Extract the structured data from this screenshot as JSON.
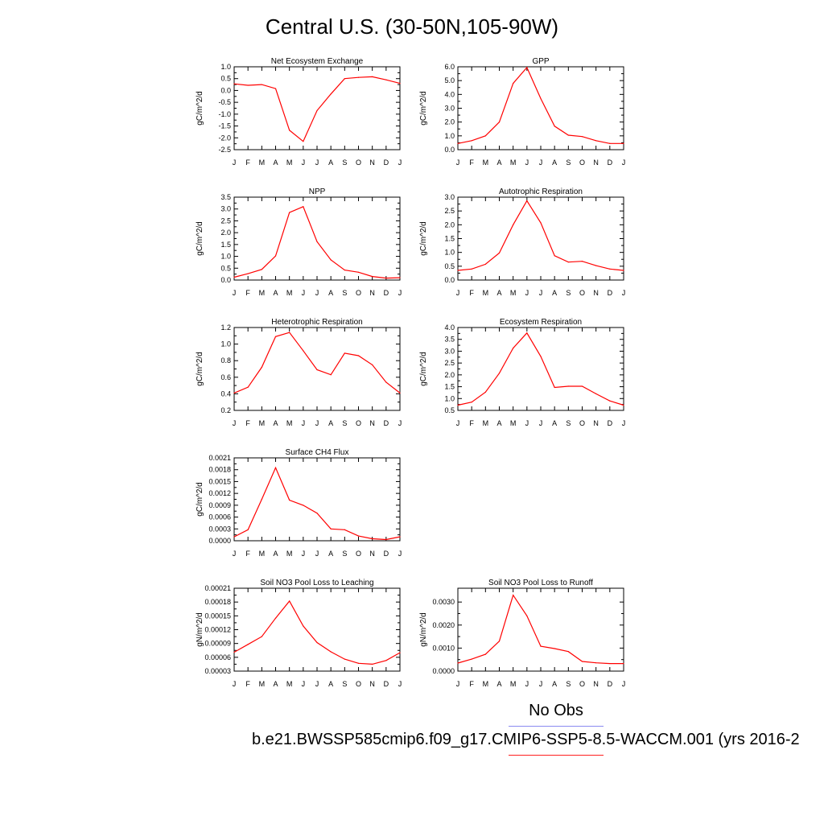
{
  "page": {
    "title": "Central U.S. (30-50N,105-90W)"
  },
  "legend": {
    "obs_label": "No Obs",
    "obs_color": "#8a8af0",
    "model_label": "b.e21.BWSSP585cmip6.f09_g17.CMIP6-SSP5-8.5-WACCM.001 (yrs 2016-2",
    "model_color": "#ff2020"
  },
  "months": [
    "J",
    "F",
    "M",
    "A",
    "M",
    "J",
    "J",
    "A",
    "S",
    "O",
    "N",
    "D",
    "J"
  ],
  "chart_data": [
    {
      "type": "line",
      "title": "Net Ecosystem Exchange",
      "ylabel": "gC/m^2/d",
      "ylim": [
        -2.5,
        1.0
      ],
      "yticks": [
        "1.0",
        "0.5",
        "0.0",
        "-0.5",
        "-1.0",
        "-1.5",
        "-2.0",
        "-2.5"
      ],
      "ytick_values": [
        1.0,
        0.5,
        0.0,
        -0.5,
        -1.0,
        -1.5,
        -2.0,
        -2.5
      ],
      "series": [
        {
          "values": [
            0.28,
            0.22,
            0.25,
            0.08,
            -1.68,
            -2.15,
            -0.85,
            -0.15,
            0.5,
            0.55,
            0.58,
            0.45,
            0.3
          ],
          "color": "#ff0000"
        }
      ]
    },
    {
      "type": "line",
      "title": "GPP",
      "ylabel": "gC/m^2/d",
      "ylim": [
        0.0,
        6.0
      ],
      "yticks": [
        "6.0",
        "5.0",
        "4.0",
        "3.0",
        "2.0",
        "1.0",
        "0.0"
      ],
      "ytick_values": [
        6,
        5,
        4,
        3,
        2,
        1,
        0
      ],
      "series": [
        {
          "values": [
            0.45,
            0.65,
            1.0,
            2.0,
            4.8,
            5.95,
            3.7,
            1.7,
            1.05,
            0.95,
            0.65,
            0.45,
            0.45
          ],
          "color": "#ff0000"
        }
      ]
    },
    {
      "type": "line",
      "title": "NPP",
      "ylabel": "gC/m^2/d",
      "ylim": [
        0.0,
        3.5
      ],
      "yticks": [
        "3.5",
        "3.0",
        "2.5",
        "2.0",
        "1.5",
        "1.0",
        "0.5",
        "0.0"
      ],
      "ytick_values": [
        3.5,
        3.0,
        2.5,
        2.0,
        1.5,
        1.0,
        0.5,
        0.0
      ],
      "series": [
        {
          "values": [
            0.12,
            0.27,
            0.45,
            1.02,
            2.85,
            3.1,
            1.62,
            0.85,
            0.42,
            0.33,
            0.15,
            0.08,
            0.1
          ],
          "color": "#ff0000"
        }
      ]
    },
    {
      "type": "line",
      "title": "Autotrophic Respiration",
      "ylabel": "gC/m^2/d",
      "ylim": [
        0.0,
        3.0
      ],
      "yticks": [
        "3.0",
        "2.5",
        "2.0",
        "1.5",
        "1.0",
        "0.5",
        "0.0"
      ],
      "ytick_values": [
        3.0,
        2.5,
        2.0,
        1.5,
        1.0,
        0.5,
        0.0
      ],
      "series": [
        {
          "values": [
            0.35,
            0.4,
            0.57,
            0.98,
            2.0,
            2.87,
            2.07,
            0.88,
            0.65,
            0.68,
            0.52,
            0.4,
            0.35
          ],
          "color": "#ff0000"
        }
      ]
    },
    {
      "type": "line",
      "title": "Heterotrophic Respiration",
      "ylabel": "gC/m^2/d",
      "ylim": [
        0.2,
        1.2
      ],
      "yticks": [
        "1.2",
        "1.0",
        "0.8",
        "0.6",
        "0.4",
        "0.2"
      ],
      "ytick_values": [
        1.2,
        1.0,
        0.8,
        0.6,
        0.4,
        0.2
      ],
      "series": [
        {
          "values": [
            0.41,
            0.48,
            0.72,
            1.09,
            1.14,
            0.92,
            0.69,
            0.63,
            0.89,
            0.86,
            0.75,
            0.54,
            0.41
          ],
          "color": "#ff0000"
        }
      ]
    },
    {
      "type": "line",
      "title": "Ecosystem Respiration",
      "ylabel": "gC/m^2/d",
      "ylim": [
        0.5,
        4.0
      ],
      "yticks": [
        "4.0",
        "3.5",
        "3.0",
        "2.5",
        "2.0",
        "1.5",
        "1.0",
        "0.5"
      ],
      "ytick_values": [
        4.0,
        3.5,
        3.0,
        2.5,
        2.0,
        1.5,
        1.0,
        0.5
      ],
      "series": [
        {
          "values": [
            0.72,
            0.85,
            1.27,
            2.07,
            3.13,
            3.77,
            2.78,
            1.47,
            1.52,
            1.52,
            1.2,
            0.9,
            0.72
          ],
          "color": "#ff0000"
        }
      ]
    },
    {
      "type": "line",
      "title": "Surface CH4 Flux",
      "ylabel": "gC/m^2/d",
      "ylim": [
        0.0,
        0.0021
      ],
      "yticks": [
        "0.0021",
        "0.0018",
        "0.0015",
        "0.0012",
        "0.0009",
        "0.0006",
        "0.0003",
        "0.0000"
      ],
      "ytick_values": [
        0.0021,
        0.0018,
        0.0015,
        0.0012,
        0.0009,
        0.0006,
        0.0003,
        0.0
      ],
      "series": [
        {
          "values": [
            0.0001,
            0.00028,
            0.00105,
            0.00185,
            0.00103,
            0.0009,
            0.0007,
            0.0003,
            0.00028,
            0.00012,
            5e-05,
            3e-05,
            0.0001
          ],
          "color": "#ff0000"
        }
      ]
    },
    {
      "type": "line",
      "title": "Soil NO3 Pool Loss to Leaching",
      "ylabel": "gN/m^2/d",
      "ylim": [
        3e-05,
        0.00021
      ],
      "yticks": [
        "0.00021",
        "0.00018",
        "0.00015",
        "0.00012",
        "0.00009",
        "0.00006",
        "0.00003"
      ],
      "ytick_values": [
        0.00021,
        0.00018,
        0.00015,
        0.00012,
        9e-05,
        6e-05,
        3e-05
      ],
      "series": [
        {
          "values": [
            7.1e-05,
            8.8e-05,
            0.000105,
            0.000145,
            0.000182,
            0.000128,
            9.2e-05,
            7.2e-05,
            5.6e-05,
            4.7e-05,
            4.5e-05,
            5.3e-05,
            7e-05
          ],
          "color": "#ff0000"
        }
      ]
    },
    {
      "type": "line",
      "title": "Soil NO3 Pool Loss to Runoff",
      "ylabel": "gN/m^2/d",
      "ylim": [
        0.0,
        0.0036
      ],
      "yticks": [
        "0.0030",
        "0.0020",
        "0.0010",
        "0.0000"
      ],
      "ytick_values": [
        0.003,
        0.002,
        0.001,
        0.0
      ],
      "series": [
        {
          "values": [
            0.00035,
            0.00052,
            0.00073,
            0.0013,
            0.0033,
            0.0024,
            0.00108,
            0.00098,
            0.00085,
            0.00042,
            0.00036,
            0.00033,
            0.00033
          ],
          "color": "#ff0000"
        }
      ]
    }
  ]
}
